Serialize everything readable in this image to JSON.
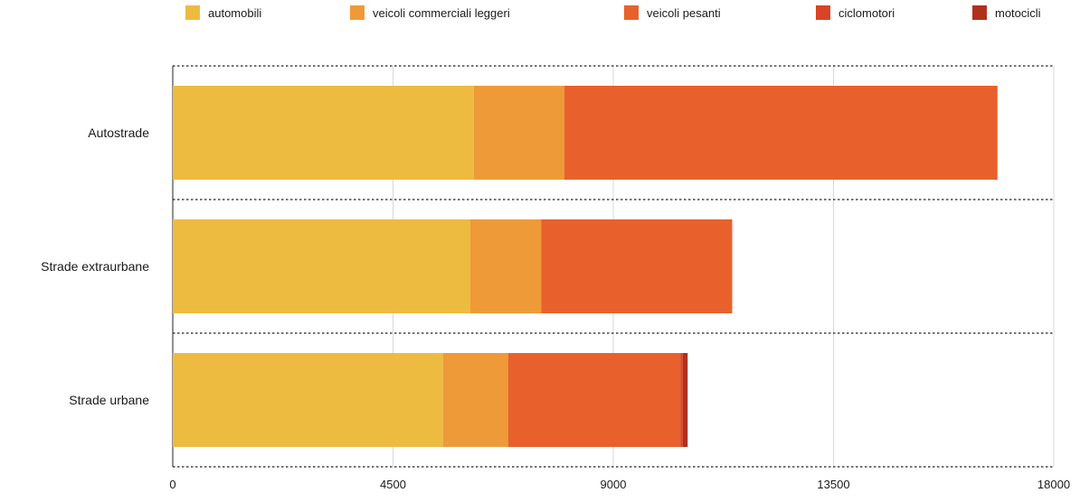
{
  "chart_data": {
    "type": "bar",
    "orientation": "horizontal",
    "stacked": true,
    "categories": [
      "Autostrade",
      "Strade extraurbane",
      "Strade urbane"
    ],
    "series": [
      {
        "name": "automobili",
        "color": "#EDBB40",
        "values": [
          6150,
          6080,
          5520
        ]
      },
      {
        "name": "veicoli commerciali leggeri",
        "color": "#EF9A38",
        "values": [
          1850,
          1450,
          1330
        ]
      },
      {
        "name": "veicoli pesanti",
        "color": "#E8612C",
        "values": [
          8850,
          3900,
          3520
        ]
      },
      {
        "name": "ciclomotori",
        "color": "#D94427",
        "values": [
          0,
          0,
          50
        ]
      },
      {
        "name": "motocicli",
        "color": "#B0301C",
        "values": [
          0,
          0,
          100
        ]
      }
    ],
    "xlim": [
      0,
      18000
    ],
    "xticks": [
      0,
      4500,
      9000,
      13500,
      18000
    ],
    "xlabel": "",
    "ylabel": "",
    "title": "",
    "grid": "vertical",
    "legend": "top"
  }
}
